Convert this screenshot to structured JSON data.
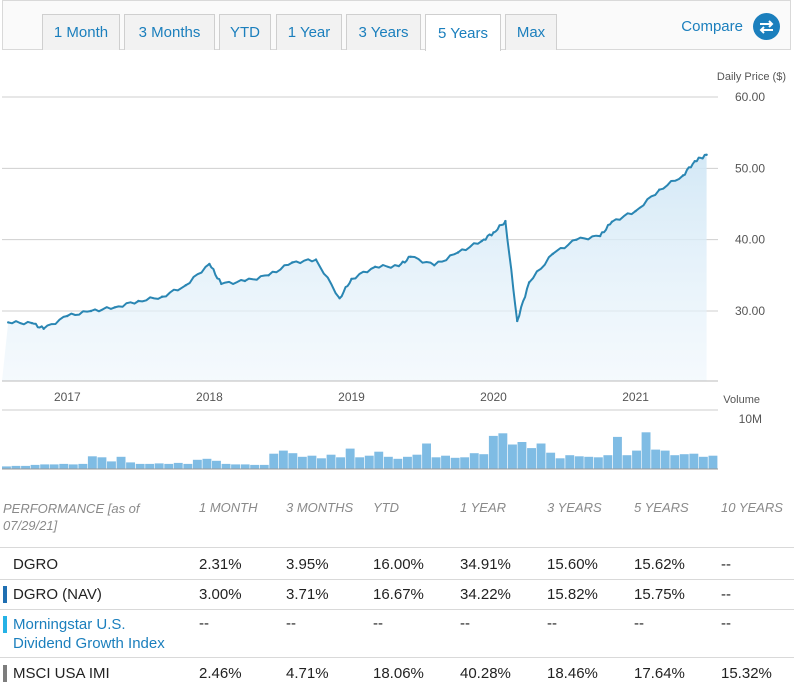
{
  "tabs": [
    {
      "label": "1 Month",
      "active": false
    },
    {
      "label": "3 Months",
      "active": false
    },
    {
      "label": "YTD",
      "active": false
    },
    {
      "label": "1 Year",
      "active": false
    },
    {
      "label": "3 Years",
      "active": false
    },
    {
      "label": "5 Years",
      "active": true
    },
    {
      "label": "Max",
      "active": false
    }
  ],
  "compare": {
    "label": "Compare",
    "icon": "swap-arrows-icon"
  },
  "colors": {
    "accent": "#1b7fbd",
    "line": "#2a86b3",
    "volume": "#7fbce4",
    "dgro_nav": "#1f6fb2",
    "index": "#25b2e6",
    "msci": "#7d7d7d"
  },
  "chart_data": [
    {
      "type": "line",
      "ylabel": "Daily Price ($)",
      "ylim": [
        20,
        60
      ],
      "yticks": [
        "30.00",
        "40.00",
        "50.00",
        "60.00"
      ],
      "xticks": [
        "2017",
        "2018",
        "2019",
        "2020",
        "2021"
      ],
      "series": [
        {
          "x": [
            "2016-08",
            "2016-10",
            "2016-11",
            "2017-01",
            "2017-03",
            "2017-05",
            "2017-07",
            "2017-09",
            "2017-11",
            "2018-01",
            "2018-02",
            "2018-04",
            "2018-06",
            "2018-08",
            "2018-10",
            "2018-12",
            "2019-01",
            "2019-03",
            "2019-05",
            "2019-06",
            "2019-08",
            "2019-10",
            "2019-12",
            "2020-01",
            "2020-02",
            "2020-03",
            "2020-04",
            "2020-06",
            "2020-08",
            "2020-10",
            "2020-11",
            "2021-01",
            "2021-03",
            "2021-05",
            "2021-06",
            "2021-07"
          ],
          "y": [
            28.4,
            28.3,
            27.5,
            29.3,
            30.0,
            30.5,
            31.4,
            32.0,
            33.6,
            36.6,
            33.8,
            34.2,
            35.0,
            36.8,
            37.2,
            31.8,
            34.5,
            36.2,
            36.3,
            37.6,
            36.4,
            38.2,
            39.8,
            41.0,
            42.6,
            28.6,
            34.0,
            38.0,
            40.0,
            40.5,
            42.5,
            44.0,
            47.0,
            49.0,
            51.0,
            51.9
          ]
        }
      ]
    },
    {
      "type": "bar",
      "ylabel": "Volume",
      "yticks": [
        "10M"
      ],
      "series": [
        {
          "name": "Volume",
          "values": [
            0.5,
            0.6,
            0.6,
            0.8,
            0.9,
            0.9,
            1.0,
            0.9,
            1.0,
            2.5,
            2.3,
            1.5,
            2.4,
            1.3,
            1.0,
            1.0,
            1.1,
            1.0,
            1.2,
            1.0,
            1.8,
            2.0,
            1.6,
            1.0,
            0.9,
            0.9,
            0.8,
            0.8,
            3.0,
            3.6,
            3.1,
            2.4,
            2.6,
            2.1,
            2.8,
            2.3,
            4.0,
            2.3,
            2.6,
            3.4,
            2.4,
            2.0,
            2.4,
            2.8,
            5.0,
            2.3,
            2.6,
            2.2,
            2.3,
            3.1,
            2.9,
            6.5,
            7.0,
            4.8,
            5.3,
            4.1,
            5.0,
            3.2,
            2.1,
            2.7,
            2.5,
            2.4,
            2.3,
            2.7,
            6.3,
            2.7,
            3.6,
            7.2,
            3.8,
            3.6,
            2.7,
            2.9,
            3.0,
            2.4,
            2.6
          ]
        }
      ]
    }
  ],
  "performance": {
    "headers": [
      "PERFORMANCE [as of 07/29/21]",
      "1 MONTH",
      "3 MONTHS",
      "YTD",
      "1 YEAR",
      "3 YEARS",
      "5 YEARS",
      "10 YEARS"
    ],
    "rows": [
      {
        "name": "DGRO",
        "values": [
          "2.31%",
          "3.95%",
          "16.00%",
          "34.91%",
          "15.60%",
          "15.62%",
          "--"
        ]
      },
      {
        "name": "DGRO (NAV)",
        "values": [
          "3.00%",
          "3.71%",
          "16.67%",
          "34.22%",
          "15.82%",
          "15.75%",
          "--"
        ]
      },
      {
        "name": "Morningstar U.S. Dividend Growth Index",
        "values": [
          "--",
          "--",
          "--",
          "--",
          "--",
          "--",
          "--"
        ]
      },
      {
        "name": "MSCI USA IMI",
        "values": [
          "2.46%",
          "4.71%",
          "18.06%",
          "40.28%",
          "18.46%",
          "17.64%",
          "15.32%"
        ]
      }
    ]
  }
}
